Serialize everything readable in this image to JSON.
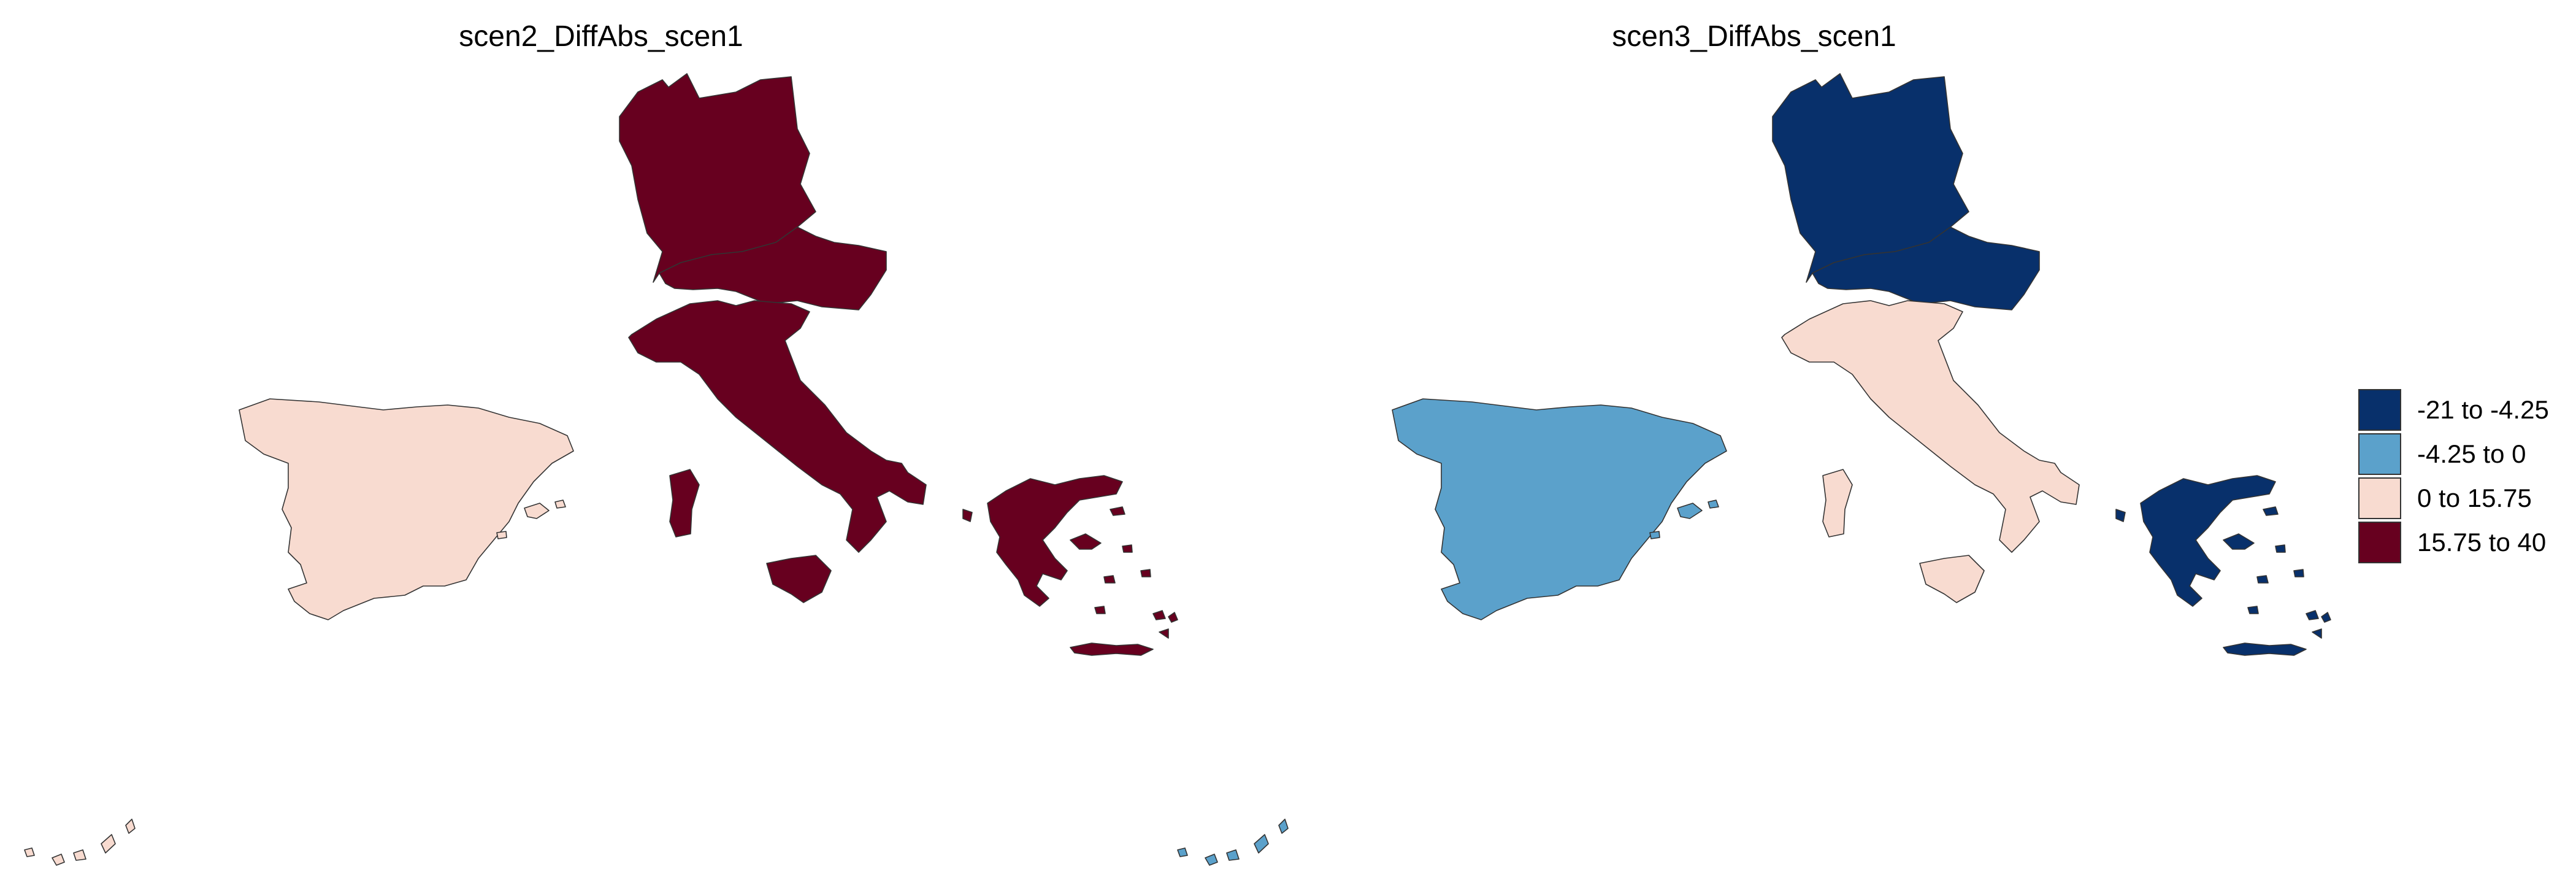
{
  "maps": [
    {
      "title": "scen2_DiffAbs_scen1",
      "regions": {
        "germany": "15.75 to 40",
        "austria": "15.75 to 40",
        "italy": "15.75 to 40",
        "spain": "0 to 15.75",
        "greece": "15.75 to 40"
      }
    },
    {
      "title": "scen3_DiffAbs_scen1",
      "regions": {
        "germany": "-21 to -4.25",
        "austria": "-21 to -4.25",
        "italy": "0 to 15.75",
        "spain": "-4.25 to 0",
        "greece": "-21 to -4.25"
      }
    }
  ],
  "legend": [
    {
      "label": "-21 to -4.25",
      "color": "#08306b"
    },
    {
      "label": "-4.25 to 0",
      "color": "#5ba1cb"
    },
    {
      "label": "0 to 15.75",
      "color": "#f8dbd0"
    },
    {
      "label": "15.75 to 40",
      "color": "#67001f"
    }
  ]
}
